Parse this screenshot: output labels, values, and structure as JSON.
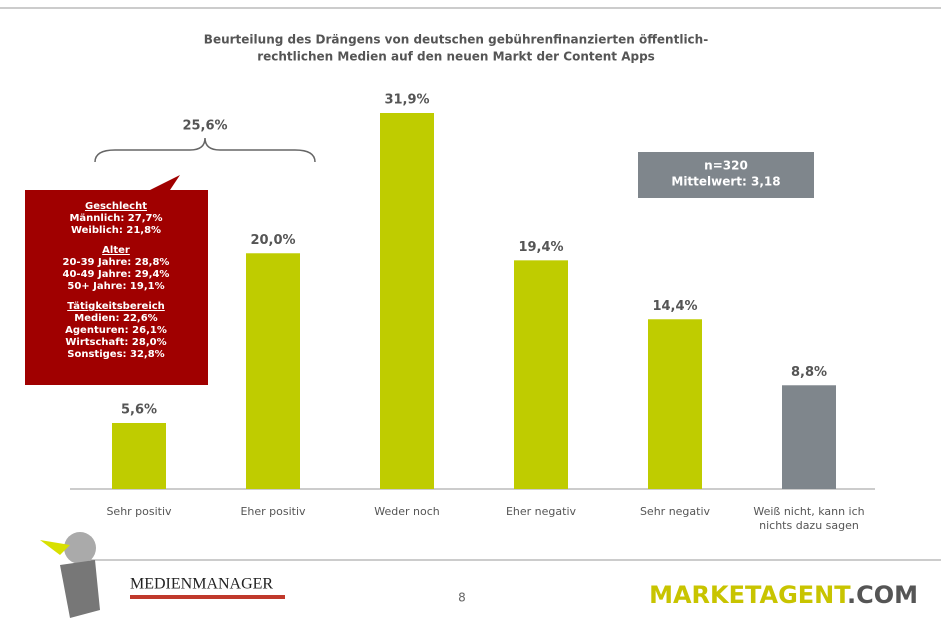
{
  "chart_data": {
    "type": "bar",
    "title_lines": [
      "Beurteilung des Drängens von deutschen gebührenfinanzierten öffentlich-",
      "rechtlichen Medien auf den neuen Markt der Content Apps"
    ],
    "categories": [
      "Sehr positiv",
      "Eher positiv",
      "Weder noch",
      "Eher negativ",
      "Sehr negativ",
      "Weiß nicht, kann ich nichts dazu sagen"
    ],
    "values": [
      5.6,
      20.0,
      31.9,
      19.4,
      14.4,
      8.8
    ],
    "value_labels": [
      "5,6%",
      "20,0%",
      "31,9%",
      "19,4%",
      "14,4%",
      "8,8%"
    ],
    "colors": [
      "#bfcc00",
      "#bfcc00",
      "#bfcc00",
      "#bfcc00",
      "#bfcc00",
      "#7f868c"
    ],
    "brace": {
      "value": 25.6,
      "label": "25,6%"
    },
    "info_box": [
      "n=320",
      "Mittelwert: 3,18"
    ],
    "callout": [
      {
        "heading": "Geschlecht",
        "lines": [
          "Männlich: 27,7%",
          "Weiblich: 21,8%"
        ]
      },
      {
        "heading": "Alter",
        "lines": [
          "20-39 Jahre: 28,8%",
          "40-49 Jahre: 29,4%",
          "50+ Jahre: 19,1%"
        ]
      },
      {
        "heading": "Tätigkeitsbereich",
        "lines": [
          "Medien: 22,6%",
          "Agenturen: 26,1%",
          "Wirtschaft: 28,0%",
          "Sonstiges: 32,8%"
        ]
      }
    ]
  },
  "footer": {
    "page": "8",
    "left_logo": "MEDIENMANAGER",
    "brand_main": "MARKETAGENT",
    "brand_suffix": ".COM"
  }
}
